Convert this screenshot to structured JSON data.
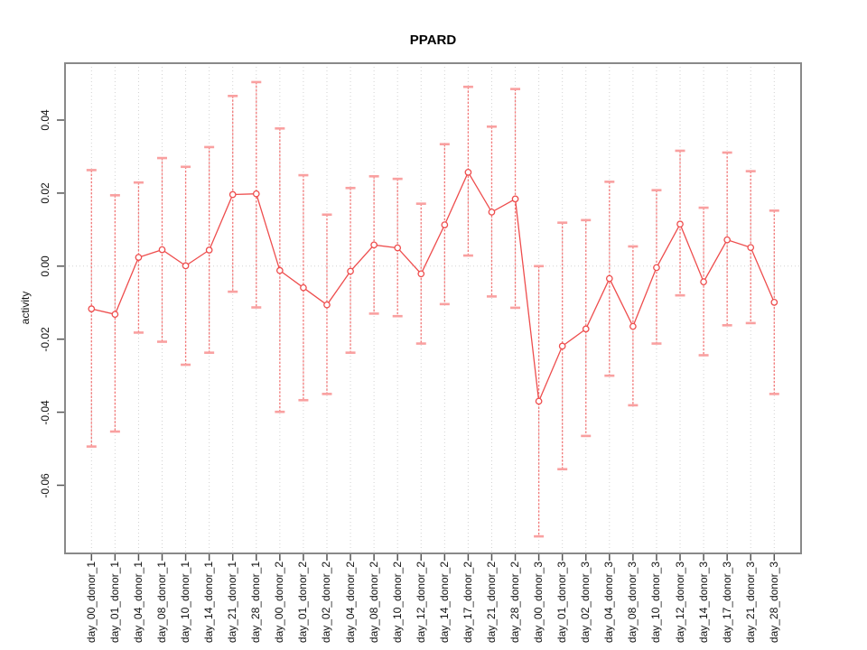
{
  "figure": {
    "title": "PPARD",
    "background": "#ffffff"
  },
  "chart_data": {
    "type": "line",
    "title": "PPARD",
    "xlabel": "",
    "ylabel": "activity",
    "point_style": "open-circle",
    "error_bars": true,
    "grid": "dotted vertical gridline at every category; dotted horizontal line at y=0 only",
    "legend": "none",
    "ylim": [
      -0.0787,
      0.0556
    ],
    "yticks": [
      {
        "label": "0.04",
        "value": 0.04
      },
      {
        "label": "0.02",
        "value": 0.02
      },
      {
        "label": "0.00",
        "value": 0.0
      },
      {
        "label": "-0.02",
        "value": -0.02
      },
      {
        "label": "-0.04",
        "value": -0.04
      },
      {
        "label": "-0.06",
        "value": -0.06
      }
    ],
    "categories": [
      "day_00_donor_1",
      "day_01_donor_1",
      "day_04_donor_1",
      "day_08_donor_1",
      "day_10_donor_1",
      "day_14_donor_1",
      "day_21_donor_1",
      "day_28_donor_1",
      "day_00_donor_2",
      "day_01_donor_2",
      "day_02_donor_2",
      "day_04_donor_2",
      "day_08_donor_2",
      "day_10_donor_2",
      "day_12_donor_2",
      "day_14_donor_2",
      "day_17_donor_2",
      "day_21_donor_2",
      "day_28_donor_2",
      "day_00_donor_3",
      "day_01_donor_3",
      "day_02_donor_3",
      "day_04_donor_3",
      "day_08_donor_3",
      "day_10_donor_3",
      "day_12_donor_3",
      "day_14_donor_3",
      "day_17_donor_3",
      "day_21_donor_3",
      "day_28_donor_3"
    ],
    "series": [
      {
        "name": "activity",
        "values": [
          -0.0117,
          -0.0132,
          0.0024,
          0.0045,
          0.0001,
          0.0044,
          0.0196,
          0.0198,
          -0.0012,
          -0.0059,
          -0.0106,
          -0.0014,
          0.0058,
          0.005,
          -0.0021,
          0.0113,
          0.0257,
          0.0148,
          0.0184,
          -0.037,
          -0.0219,
          -0.0172,
          -0.0034,
          -0.0165,
          -0.0004,
          0.0115,
          -0.0043,
          0.0072,
          0.0051,
          -0.0099
        ],
        "lower": [
          -0.0494,
          -0.0453,
          -0.0182,
          -0.0207,
          -0.027,
          -0.0237,
          -0.007,
          -0.0113,
          -0.0399,
          -0.0367,
          -0.035,
          -0.0237,
          -0.013,
          -0.0137,
          -0.0212,
          -0.0104,
          0.0029,
          -0.0083,
          -0.0114,
          -0.074,
          -0.0556,
          -0.0465,
          -0.03,
          -0.0381,
          -0.0212,
          -0.008,
          -0.0244,
          -0.0162,
          -0.0156,
          -0.035
        ],
        "upper": [
          0.0263,
          0.0194,
          0.0229,
          0.0296,
          0.0272,
          0.0326,
          0.0466,
          0.0504,
          0.0377,
          0.0249,
          0.0141,
          0.0214,
          0.0246,
          0.0239,
          0.0171,
          0.0334,
          0.0491,
          0.0382,
          0.0485,
          0.0,
          0.0119,
          0.0126,
          0.0231,
          0.0054,
          0.0208,
          0.0316,
          0.016,
          0.0311,
          0.026,
          0.0152
        ]
      }
    ],
    "colors": {
      "series": "#ee4d4d",
      "error_bar": "#f27979",
      "cap": "#f9a0a0",
      "grid": "#d2d2d2",
      "box": "#898989",
      "tick": "#555555",
      "text": "#111111"
    }
  }
}
